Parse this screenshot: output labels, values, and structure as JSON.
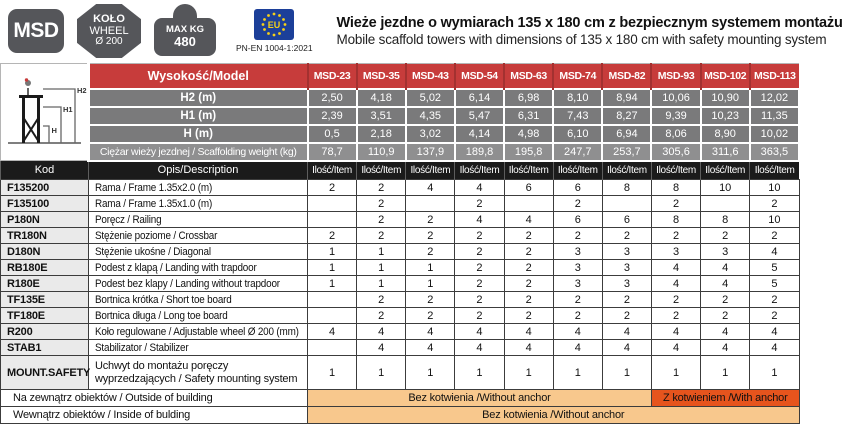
{
  "colors": {
    "accent_red": "#c73c3b",
    "accent_red_dark": "#a33130",
    "row_gray": "#7a7a7b",
    "weight_gray": "#8f8f90",
    "header_black": "#1b1b1b",
    "code_bg": "#eaeaea",
    "band_light": "#f8c88d",
    "band_dark": "#e6541d",
    "badge_gray": "#55565a",
    "eu_blue": "#1c3f99",
    "eu_yellow": "#f7d117"
  },
  "header": {
    "msd_label": "MSD",
    "wheel_badge": {
      "line1": "KOŁO",
      "line2": "WHEEL",
      "line3": "Ø 200"
    },
    "weight_badge": {
      "line1": "MAX KG",
      "line2": "480"
    },
    "eu_badge": {
      "label": "EU",
      "standard": "PN-EN 1004-1:2021"
    },
    "title_pl": "Wieże jezdne o wymiarach 135 x 180 cm z bezpiecznym systemem montażu",
    "title_en": "Mobile scaffold towers with dimensions of 135 x 180 cm with safety mounting system"
  },
  "spec_table": {
    "corner_label": "Wysokość/Model",
    "models": [
      "MSD-23",
      "MSD-35",
      "MSD-43",
      "MSD-54",
      "MSD-63",
      "MSD-74",
      "MSD-82",
      "MSD-93",
      "MSD-102",
      "MSD-113"
    ],
    "diagram_labels": {
      "h2": "H2",
      "h1": "H1",
      "h": "H"
    },
    "rows": [
      {
        "label": "H2 (m)",
        "values": [
          "2,50",
          "4,18",
          "5,02",
          "6,14",
          "6,98",
          "8,10",
          "8,94",
          "10,06",
          "10,90",
          "12,02"
        ]
      },
      {
        "label": "H1 (m)",
        "values": [
          "2,39",
          "3,51",
          "4,35",
          "5,47",
          "6,31",
          "7,43",
          "8,27",
          "9,39",
          "10,23",
          "11,35"
        ]
      },
      {
        "label": "H (m)",
        "values": [
          "0,5",
          "2,18",
          "3,02",
          "4,14",
          "4,98",
          "6,10",
          "6,94",
          "8,06",
          "8,90",
          "10,02"
        ]
      }
    ],
    "weight_row": {
      "label": "Ciężar wieży jezdnej / Scaffolding weight (kg)",
      "values": [
        "78,7",
        "110,9",
        "137,9",
        "189,8",
        "195,8",
        "247,7",
        "253,7",
        "305,6",
        "311,6",
        "363,5"
      ]
    }
  },
  "parts_table": {
    "headers": {
      "code": "Kod",
      "description": "Opis/Description",
      "qty": "Ilość/Item"
    },
    "qty_headers": [
      "Ilość/Item",
      "Ilość/Item",
      "Ilość/Item",
      "Ilość/Item",
      "Ilość/Item",
      "Ilość/Item",
      "Ilość/Item",
      "Ilość/Item",
      "Ilość/Item",
      "Ilość/Item"
    ],
    "rows": [
      {
        "code": "F135200",
        "description": "Rama / Frame 1.35x2.0 (m)",
        "qty": [
          "2",
          "2",
          "4",
          "4",
          "6",
          "6",
          "8",
          "8",
          "10",
          "10"
        ]
      },
      {
        "code": "F135100",
        "description": "Rama / Frame 1.35x1.0 (m)",
        "qty": [
          "",
          "2",
          "",
          "2",
          "",
          "2",
          "",
          "2",
          "",
          "2"
        ]
      },
      {
        "code": "P180N",
        "description": "Poręcz / Railing",
        "qty": [
          "",
          "2",
          "2",
          "4",
          "4",
          "6",
          "6",
          "8",
          "8",
          "10"
        ]
      },
      {
        "code": "TR180N",
        "description": "Stężenie poziome / Crossbar",
        "qty": [
          "2",
          "2",
          "2",
          "2",
          "2",
          "2",
          "2",
          "2",
          "2",
          "2"
        ]
      },
      {
        "code": "D180N",
        "description": "Stężenie ukośne / Diagonal",
        "qty": [
          "1",
          "1",
          "2",
          "2",
          "2",
          "3",
          "3",
          "3",
          "3",
          "4"
        ]
      },
      {
        "code": "RB180E",
        "description": "Podest z klapą / Landing with trapdoor",
        "qty": [
          "1",
          "1",
          "1",
          "2",
          "2",
          "3",
          "3",
          "4",
          "4",
          "5"
        ]
      },
      {
        "code": "R180E",
        "description": "Podest bez klapy / Landing without trapdoor",
        "qty": [
          "1",
          "1",
          "1",
          "2",
          "2",
          "3",
          "3",
          "4",
          "4",
          "5"
        ]
      },
      {
        "code": "TF135E",
        "description": "Bortnica krótka / Short toe board",
        "qty": [
          "",
          "2",
          "2",
          "2",
          "2",
          "2",
          "2",
          "2",
          "2",
          "2"
        ]
      },
      {
        "code": "TF180E",
        "description": "Bortnica długa / Long toe board",
        "qty": [
          "",
          "2",
          "2",
          "2",
          "2",
          "2",
          "2",
          "2",
          "2",
          "2"
        ]
      },
      {
        "code": "R200",
        "description": "Koło regulowane / Adjustable wheel Ø 200 (mm)",
        "qty": [
          "4",
          "4",
          "4",
          "4",
          "4",
          "4",
          "4",
          "4",
          "4",
          "4"
        ]
      },
      {
        "code": "STAB1",
        "description": "Stabilizator / Stabilizer",
        "qty": [
          "",
          "4",
          "4",
          "4",
          "4",
          "4",
          "4",
          "4",
          "4",
          "4"
        ]
      },
      {
        "code": "MOUNT.SAFETY",
        "description": "Uchwyt do montażu poręczy wyprzedzających / Safety mounting system",
        "qty": [
          "1",
          "1",
          "1",
          "1",
          "1",
          "1",
          "1",
          "1",
          "1",
          "1"
        ]
      }
    ],
    "anchor_rows": [
      {
        "label": "Na zewnątrz obiektów / Outside of building",
        "bands": [
          {
            "text": "Bez kotwienia /Without anchor",
            "span": 7
          },
          {
            "text": "Z kotwieniem /With anchor",
            "span": 3
          }
        ]
      },
      {
        "label": "Wewnątrz obiektów / Inside of bulding",
        "bands": [
          {
            "text": "Bez kotwienia /Without anchor",
            "span": 10
          }
        ]
      }
    ]
  }
}
